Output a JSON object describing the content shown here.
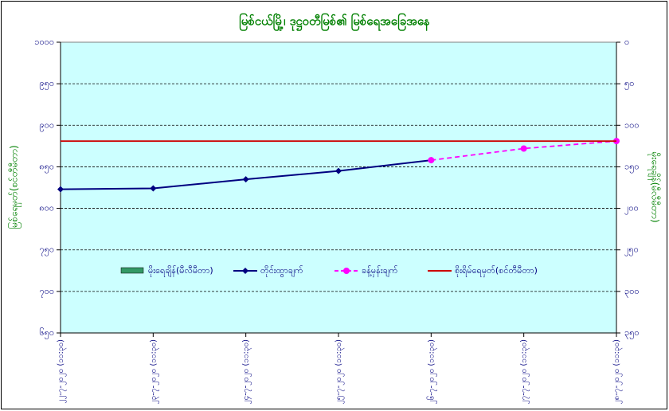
{
  "chart_data": {
    "type": "line",
    "title": "မြစ်ငယ်မြို့၊ ဒုဋ္ဌဝတီမြစ်၏ မြစ်ရေအခြေအနေ",
    "y_label": "မြစ်ရေမှတ်(စင်တီမီတာ)",
    "y2_label": "မိုးရေချိန်(မီလီမီတာ)",
    "categories": [
      "၂၂-၇-၂၀၂၀ (၁၁:၃၀)",
      "၂၃-၇-၂၀၂၀ (၁၁:၃၀)",
      "၂၄-၇-၂၀၂၀ (၁၁:၃၀)",
      "၂၅-၇-၂၀၂၀ (၁၁:၃၀)",
      "၂၆-၇-၂၀၂၀ (၁၁:၃၀)",
      "၂၇-၇-၂၀၂၀ (၁၁:၃၀)",
      "၂၈-၇-၂၀၂၀ (၁၁:၃၀)"
    ],
    "series": [
      {
        "name": "မိုးရေချိန်(မီလီမီတာ)",
        "color": "#339966",
        "axis": "y2",
        "kind": "bar",
        "values": [
          null,
          null,
          null,
          null,
          null,
          null,
          null
        ]
      },
      {
        "name": "တိုင်းထွာချက်",
        "color": "#000080",
        "kind": "line",
        "values": [
          823,
          824,
          835,
          845,
          858,
          null,
          null
        ]
      },
      {
        "name": "ခန့်မှန်းချက်",
        "color": "#ff00ff",
        "kind": "dashed",
        "values": [
          null,
          null,
          null,
          null,
          858,
          872,
          881
        ]
      },
      {
        "name": "စိုးရိမ်ရေမှတ်(စင်တီမီတာ)",
        "color": "#cc0000",
        "kind": "plain",
        "values": [
          881,
          881,
          881,
          881,
          881,
          881,
          881
        ]
      }
    ],
    "ylim": [
      650,
      1000
    ],
    "yticks": [
      {
        "value": 650,
        "label": "၆၅၀"
      },
      {
        "value": 700,
        "label": "၇၀၀"
      },
      {
        "value": 750,
        "label": "၇၅၀"
      },
      {
        "value": 800,
        "label": "၈၀၀"
      },
      {
        "value": 850,
        "label": "၈၅၀"
      },
      {
        "value": 900,
        "label": "၉၀၀"
      },
      {
        "value": 950,
        "label": "၉၅၀"
      },
      {
        "value": 1000,
        "label": "၁၀၀၀"
      }
    ],
    "y2lim": [
      350,
      0
    ],
    "y2ticks": [
      {
        "value": 0,
        "label": "၀"
      },
      {
        "value": 50,
        "label": "၅၀"
      },
      {
        "value": 100,
        "label": "၁၀၀"
      },
      {
        "value": 150,
        "label": "၁၅၀"
      },
      {
        "value": 200,
        "label": "၂၀၀"
      },
      {
        "value": 250,
        "label": "၂၅၀"
      },
      {
        "value": 300,
        "label": "၃၀၀"
      },
      {
        "value": 350,
        "label": "၃၅၀"
      }
    ],
    "grid": true,
    "plot_background": "#ccffff",
    "legend": "center"
  }
}
